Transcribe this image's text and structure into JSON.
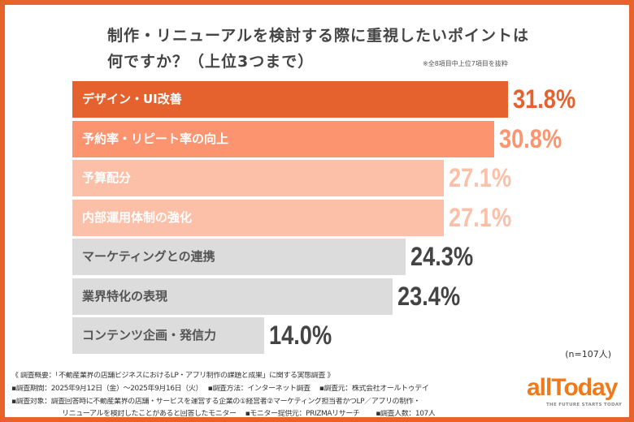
{
  "chart_data": {
    "type": "bar",
    "orientation": "horizontal",
    "title": "制作・リニューアルを検討する際に重視したいポイントは何ですか？（上位3つまで）",
    "title_lines": [
      "制作・リニューアルを検討する際に重視したいポイントは",
      "何ですか？（上位3つまで）"
    ],
    "note": "※全8項目中上位7項目を抜粋",
    "categories": [
      "デザイン・UI改善",
      "予約率・リピート率の向上",
      "予算配分",
      "内部運用体制の強化",
      "マーケティングとの連携",
      "業界特化の表現",
      "コンテンツ企画・発信力"
    ],
    "values": [
      31.8,
      30.8,
      27.1,
      27.1,
      24.3,
      23.4,
      14.0
    ],
    "value_labels": [
      "31.8%",
      "30.8%",
      "27.1%",
      "27.1%",
      "24.3%",
      "23.4%",
      "14.0%"
    ],
    "bar_colors": [
      "#e5622f",
      "#fd9470",
      "#fcc0a8",
      "#fcc0a8",
      "#dcdcdc",
      "#dcdcdc",
      "#dcdcdc"
    ],
    "label_colors": [
      "#ffffff",
      "#ffffff",
      "#ffffff",
      "#ffffff",
      "#555555",
      "#555555",
      "#555555"
    ],
    "value_colors": [
      "#e5622f",
      "#fd9470",
      "#fcc0a8",
      "#fcc0a8",
      "#444444",
      "#444444",
      "#444444"
    ],
    "xlim": [
      0,
      31.8
    ],
    "grid": false,
    "sample": "(n=107人)"
  },
  "footer": {
    "line1": "《 調査概要：「不動産業界の店舗ビジネスにおけるLP・アプリ制作の課題と成果」に関する実態調査 》",
    "line2": "▪調査期間：2025年9月12日（金）〜2025年9月16日（火）　 ▪調査方法：インターネット調査　 ▪調査元：株式会社オールトゥデイ",
    "line3": "▪調査対象：調査回答時に不動産業界の店舗・サービスを運営する企業の①経営者②マーケティング担当者かつLP／アプリの制作・",
    "line4": "リニューアルを検討したことがあると回答したモニター　 ▪モニター提供元：PRIZMAリサーチ　　 ▪調査人数：107人"
  },
  "logo": {
    "text": "allToday",
    "tagline": "THE FUTURE STARTS TODAY"
  },
  "colors": {
    "border": "#e8622c",
    "logo": "#f07a1a"
  }
}
